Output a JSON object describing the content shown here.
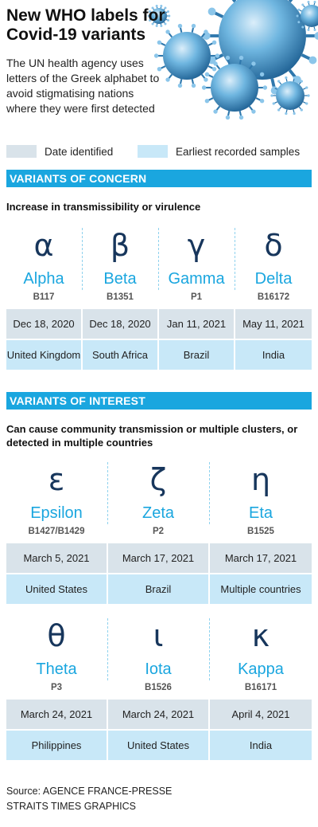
{
  "header": {
    "title": "New WHO labels for Covid-19 variants",
    "subtitle": "The UN health agency uses letters of the Greek alphabet to avoid stigmatising nations where they were first detected"
  },
  "legend": {
    "date_label": "Date identified",
    "samples_label": "Earliest recorded samples",
    "date_color": "#d9e3ea",
    "samples_color": "#c8e8f8"
  },
  "colors": {
    "accent": "#1aa6df",
    "symbol": "#17365c"
  },
  "concern": {
    "heading": "VARIANTS OF CONCERN",
    "description": "Increase in transmissibility or virulence",
    "variants": [
      {
        "symbol": "α",
        "name": "Alpha",
        "code": "B117",
        "date": "Dec 18, 2020",
        "place": "United Kingdom"
      },
      {
        "symbol": "β",
        "name": "Beta",
        "code": "B1351",
        "date": "Dec 18, 2020",
        "place": "South Africa"
      },
      {
        "symbol": "γ",
        "name": "Gamma",
        "code": "P1",
        "date": "Jan 11, 2021",
        "place": "Brazil"
      },
      {
        "symbol": "δ",
        "name": "Delta",
        "code": "B16172",
        "date": "May 11, 2021",
        "place": "India"
      }
    ]
  },
  "interest": {
    "heading": "VARIANTS OF INTEREST",
    "description": "Can cause community transmission or multiple clusters, or detected in multiple countries",
    "row1": [
      {
        "symbol": "ε",
        "name": "Epsilon",
        "code": "B1427/B1429",
        "date": "March 5, 2021",
        "place": "United States"
      },
      {
        "symbol": "ζ",
        "name": "Zeta",
        "code": "P2",
        "date": "March 17, 2021",
        "place": "Brazil"
      },
      {
        "symbol": "η",
        "name": "Eta",
        "code": "B1525",
        "date": "March 17, 2021",
        "place": "Multiple countries"
      }
    ],
    "row2": [
      {
        "symbol": "θ",
        "name": "Theta",
        "code": "P3",
        "date": "March 24, 2021",
        "place": "Philippines"
      },
      {
        "symbol": "ι",
        "name": "Iota",
        "code": "B1526",
        "date": "March 24, 2021",
        "place": "United States"
      },
      {
        "symbol": "κ",
        "name": "Kappa",
        "code": "B16171",
        "date": "April 4, 2021",
        "place": "India"
      }
    ]
  },
  "footer": {
    "source": "Source: AGENCE FRANCE-PRESSE",
    "credit": "STRAITS TIMES GRAPHICS"
  }
}
